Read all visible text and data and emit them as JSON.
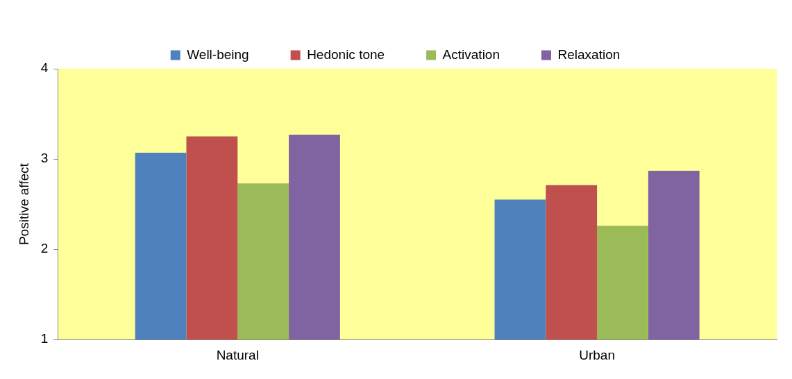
{
  "chart_data": {
    "type": "bar",
    "ylabel": "Positive affect",
    "categories": [
      "Natural",
      "Urban"
    ],
    "series": [
      {
        "name": "Well-being",
        "color": "#4f81bd",
        "values": [
          3.07,
          2.55
        ]
      },
      {
        "name": "Hedonic tone",
        "color": "#c0504d",
        "values": [
          3.25,
          2.71
        ]
      },
      {
        "name": "Activation",
        "color": "#9bbb59",
        "values": [
          2.73,
          2.26
        ]
      },
      {
        "name": "Relaxation",
        "color": "#8064a2",
        "values": [
          3.27,
          2.87
        ]
      }
    ],
    "ylim": [
      1,
      4
    ],
    "yticks": [
      1,
      2,
      3,
      4
    ],
    "grid": false,
    "legend": "top"
  }
}
